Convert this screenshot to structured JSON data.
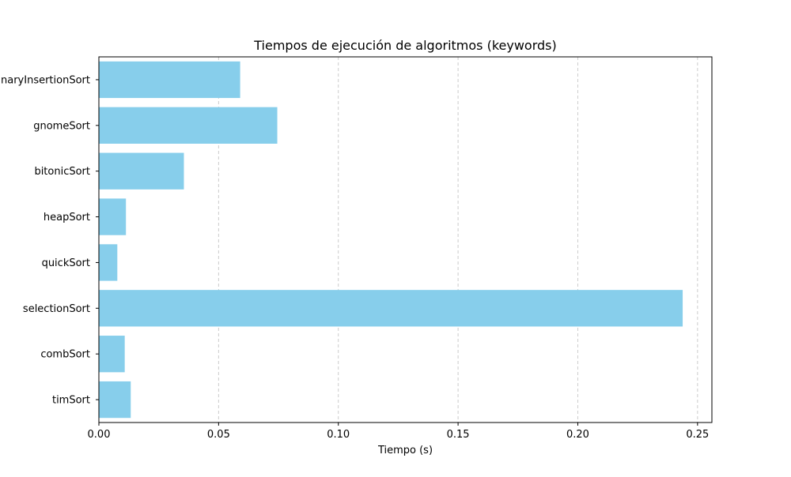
{
  "chart_data": {
    "type": "bar",
    "orientation": "horizontal",
    "title": "Tiempos de ejecución de algoritmos (keywords)",
    "xlabel": "Tiempo (s)",
    "ylabel": "",
    "categories": [
      "binaryInsertionSort",
      "gnomeSort",
      "bitonicSort",
      "heapSort",
      "quickSort",
      "selectionSort",
      "combSort",
      "timSort"
    ],
    "values": [
      0.059,
      0.0745,
      0.0355,
      0.0113,
      0.0077,
      0.2438,
      0.0108,
      0.0133
    ],
    "xlim": [
      0.0,
      0.256
    ],
    "xticks": [
      0.0,
      0.05,
      0.1,
      0.15,
      0.2,
      0.25
    ],
    "xtick_labels": [
      "0.00",
      "0.05",
      "0.10",
      "0.15",
      "0.20",
      "0.25"
    ],
    "grid": "x-dashed",
    "colors": {
      "bar": "#87ceeb",
      "grid": "#cccccc",
      "axis": "#000000"
    }
  }
}
